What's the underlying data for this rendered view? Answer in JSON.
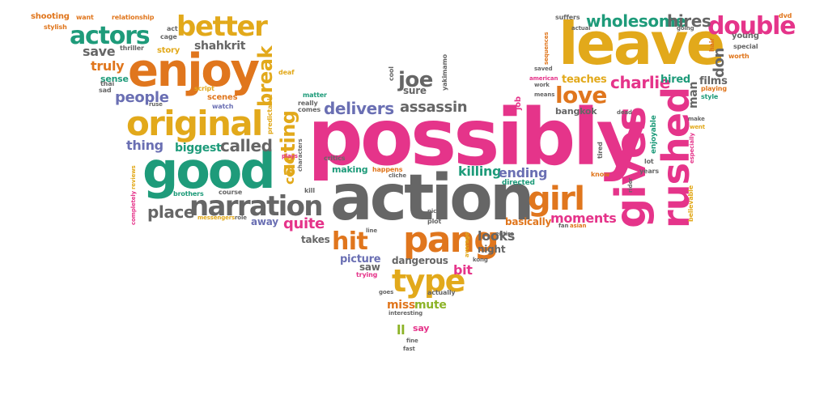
{
  "words": [
    {
      "text": "possibly",
      "color": "pink"
    },
    {
      "text": "action",
      "color": "gray"
    },
    {
      "text": "leave",
      "color": "gold"
    },
    {
      "text": "good",
      "color": "green"
    },
    {
      "text": "gives",
      "color": "pink"
    },
    {
      "text": "rushed",
      "color": "pink"
    },
    {
      "text": "enjoy",
      "color": "orange"
    },
    {
      "text": "original",
      "color": "gold"
    },
    {
      "text": "pang",
      "color": "orange"
    },
    {
      "text": "narration",
      "color": "gray"
    },
    {
      "text": "girl",
      "color": "orange"
    },
    {
      "text": "better",
      "color": "gold"
    },
    {
      "text": "actors",
      "color": "green"
    },
    {
      "text": "double",
      "color": "pink"
    },
    {
      "text": "type",
      "color": "gold"
    },
    {
      "text": "hit",
      "color": "orange"
    },
    {
      "text": "acting",
      "color": "gold"
    },
    {
      "text": "break",
      "color": "gold"
    },
    {
      "text": "love",
      "color": "orange"
    },
    {
      "text": "wholesome",
      "color": "green"
    },
    {
      "text": "hires",
      "color": "gray"
    },
    {
      "text": "charlie",
      "color": "pink"
    },
    {
      "text": "delivers",
      "color": "purple"
    },
    {
      "text": "assassin",
      "color": "gray"
    },
    {
      "text": "joe",
      "color": "gray"
    },
    {
      "text": "called",
      "color": "gray"
    },
    {
      "text": "place",
      "color": "gray"
    },
    {
      "text": "quite",
      "color": "pink"
    },
    {
      "text": "cold",
      "color": "gold"
    },
    {
      "text": "killing",
      "color": "green"
    },
    {
      "text": "ending",
      "color": "purple"
    },
    {
      "text": "moments",
      "color": "pink"
    },
    {
      "text": "basically",
      "color": "orange"
    },
    {
      "text": "looks",
      "color": "gray"
    },
    {
      "text": "dangerous",
      "color": "gray"
    },
    {
      "text": "miss",
      "color": "orange"
    },
    {
      "text": "mute",
      "color": "lime"
    },
    {
      "text": "don",
      "color": "gray"
    },
    {
      "text": "people",
      "color": "purple"
    },
    {
      "text": "thing",
      "color": "purple"
    },
    {
      "text": "biggest",
      "color": "green"
    },
    {
      "text": "save",
      "color": "gray"
    },
    {
      "text": "truly",
      "color": "orange"
    },
    {
      "text": "sense",
      "color": "green"
    },
    {
      "text": "shahkrit",
      "color": "gray"
    },
    {
      "text": "teaches",
      "color": "gold"
    },
    {
      "text": "hired",
      "color": "green"
    },
    {
      "text": "man",
      "color": "gray"
    },
    {
      "text": "films",
      "color": "gray"
    },
    {
      "text": "sure",
      "color": "gray"
    },
    {
      "text": "picture",
      "color": "purple"
    },
    {
      "text": "saw",
      "color": "gray"
    },
    {
      "text": "bit",
      "color": "pink"
    },
    {
      "text": "night",
      "color": "gray"
    },
    {
      "text": "takes",
      "color": "gray"
    },
    {
      "text": "away",
      "color": "purple"
    },
    {
      "text": "say",
      "color": "pink"
    },
    {
      "text": "ll",
      "color": "lime"
    },
    {
      "text": "bangkok",
      "color": "gray"
    },
    {
      "text": "making",
      "color": "green"
    },
    {
      "text": "shooting",
      "color": "orange"
    },
    {
      "text": "want",
      "color": "orange"
    },
    {
      "text": "relationship",
      "color": "orange"
    },
    {
      "text": "stylish",
      "color": "orange"
    },
    {
      "text": "act",
      "color": "gray"
    },
    {
      "text": "cage",
      "color": "gray"
    },
    {
      "text": "thriller",
      "color": "gray"
    },
    {
      "text": "story",
      "color": "gold"
    },
    {
      "text": "sad",
      "color": "gray"
    },
    {
      "text": "thai",
      "color": "gray"
    },
    {
      "text": "script",
      "color": "gold"
    },
    {
      "text": "scenes",
      "color": "orange"
    },
    {
      "text": "watch",
      "color": "purple"
    },
    {
      "text": "deaf",
      "color": "gold"
    },
    {
      "text": "cool",
      "color": "gray"
    },
    {
      "text": "matter",
      "color": "green"
    },
    {
      "text": "really",
      "color": "gray"
    },
    {
      "text": "comes",
      "color": "gray"
    },
    {
      "text": "predictable",
      "color": "gold"
    },
    {
      "text": "yakimamo",
      "color": "gray"
    },
    {
      "text": "job",
      "color": "pink"
    },
    {
      "text": "suffers",
      "color": "gray"
    },
    {
      "text": "actual",
      "color": "gray"
    },
    {
      "text": "going",
      "color": "gray"
    },
    {
      "text": "dvd",
      "color": "orange"
    },
    {
      "text": "young",
      "color": "gray"
    },
    {
      "text": "special",
      "color": "gray"
    },
    {
      "text": "worth",
      "color": "orange"
    },
    {
      "text": "hair",
      "color": "orange"
    },
    {
      "text": "saved",
      "color": "gray"
    },
    {
      "text": "sequences",
      "color": "orange"
    },
    {
      "text": "american",
      "color": "pink"
    },
    {
      "text": "work",
      "color": "gray"
    },
    {
      "text": "means",
      "color": "gray"
    },
    {
      "text": "dead",
      "color": "gray"
    },
    {
      "text": "playing",
      "color": "orange"
    },
    {
      "text": "style",
      "color": "green"
    },
    {
      "text": "make",
      "color": "gray"
    },
    {
      "text": "went",
      "color": "gold"
    },
    {
      "text": "especially",
      "color": "pink"
    },
    {
      "text": "enjoyable",
      "color": "green"
    },
    {
      "text": "lot",
      "color": "gray"
    },
    {
      "text": "years",
      "color": "gray"
    },
    {
      "text": "tired",
      "color": "gray"
    },
    {
      "text": "know",
      "color": "orange"
    },
    {
      "text": "rider",
      "color": "gray"
    },
    {
      "text": "believable",
      "color": "gold"
    },
    {
      "text": "directed",
      "color": "green"
    },
    {
      "text": "critics",
      "color": "gray"
    },
    {
      "text": "plays",
      "color": "pink"
    },
    {
      "text": "characters",
      "color": "gray"
    },
    {
      "text": "happens",
      "color": "orange"
    },
    {
      "text": "cliche",
      "color": "gray"
    },
    {
      "text": "kill",
      "color": "gray"
    },
    {
      "text": "brothers",
      "color": "green"
    },
    {
      "text": "course",
      "color": "gray"
    },
    {
      "text": "messengers",
      "color": "gold"
    },
    {
      "text": "role",
      "color": "gray"
    },
    {
      "text": "reviews",
      "color": "gold"
    },
    {
      "text": "completely",
      "color": "pink"
    },
    {
      "text": "nic",
      "color": "gray"
    },
    {
      "text": "plot",
      "color": "gray"
    },
    {
      "text": "line",
      "color": "gray"
    },
    {
      "text": "fan",
      "color": "gray"
    },
    {
      "text": "asian",
      "color": "orange"
    },
    {
      "text": "entire",
      "color": "gray"
    },
    {
      "text": "kong",
      "color": "gray"
    },
    {
      "text": "average",
      "color": "gold"
    },
    {
      "text": "trying",
      "color": "pink"
    },
    {
      "text": "goes",
      "color": "gray"
    },
    {
      "text": "actually",
      "color": "gray"
    },
    {
      "text": "interesting",
      "color": "gray"
    },
    {
      "text": "fine",
      "color": "gray"
    },
    {
      "text": "fast",
      "color": "gray"
    },
    {
      "text": "ruse",
      "color": "gray"
    }
  ]
}
